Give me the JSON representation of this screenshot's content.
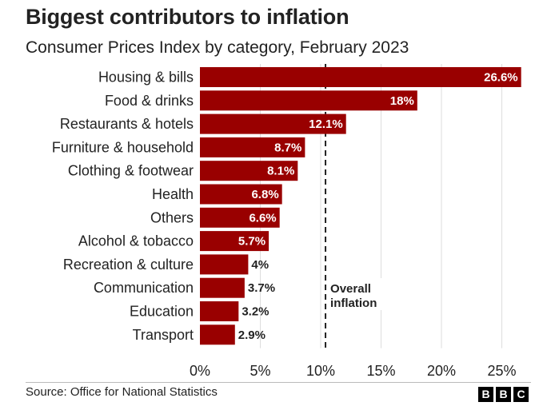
{
  "title": "Biggest contributors to inflation",
  "subtitle": "Consumer Prices Index by category, February 2023",
  "source": "Source: Office for National Statistics",
  "logo": [
    "B",
    "B",
    "C"
  ],
  "colors": {
    "bar": "#990000",
    "text": "#222222",
    "grid": "#dddddd",
    "label_inside": "#ffffff"
  },
  "chart_data": {
    "type": "bar",
    "orientation": "horizontal",
    "title": "Biggest contributors to inflation",
    "subtitle": "Consumer Prices Index by category, February 2023",
    "categories": [
      "Housing & bills",
      "Food & drinks",
      "Restaurants & hotels",
      "Furniture & household",
      "Clothing & footwear",
      "Health",
      "Others",
      "Alcohol & tobacco",
      "Recreation & culture",
      "Communication",
      "Education",
      "Transport"
    ],
    "values": [
      26.6,
      18,
      12.1,
      8.7,
      8.1,
      6.8,
      6.6,
      5.7,
      4,
      3.7,
      3.2,
      2.9
    ],
    "value_labels": [
      "26.6%",
      "18%",
      "12.1%",
      "8.7%",
      "8.1%",
      "6.8%",
      "6.6%",
      "5.7%",
      "4%",
      "3.7%",
      "3.2%",
      "2.9%"
    ],
    "xlim": [
      0,
      27
    ],
    "xticks": [
      0,
      5,
      10,
      15,
      20,
      25
    ],
    "xtick_labels": [
      "0%",
      "5%",
      "10%",
      "15%",
      "20%",
      "25%"
    ],
    "grid": true,
    "reference_line": {
      "value": 10.4,
      "label_lines": [
        "Overall",
        "inflation"
      ]
    }
  }
}
